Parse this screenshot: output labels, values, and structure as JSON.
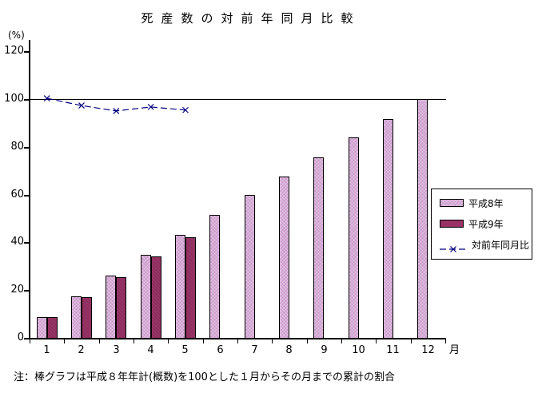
{
  "chart_data": {
    "type": "bar",
    "title": "死産数の対前年同月比較",
    "ylabel": "(%)",
    "xlabel": "月",
    "note": "注：棒グラフは平成８年年計(概数)を100とした１月からその月までの累計の割合",
    "categories": [
      "1",
      "2",
      "3",
      "4",
      "5",
      "6",
      "7",
      "8",
      "9",
      "10",
      "11",
      "12"
    ],
    "yticks": [
      0,
      20,
      40,
      60,
      80,
      100,
      120
    ],
    "ylim": [
      0,
      125
    ],
    "grid": false,
    "reference_line_y": 100,
    "legend_position": "right",
    "axis_color": "#000000",
    "series": [
      {
        "name": "平成8年",
        "type": "bar",
        "color": "#CC99CC",
        "values": [
          8.8,
          17.5,
          26.2,
          34.8,
          43.3,
          51.4,
          59.9,
          67.5,
          75.6,
          84.1,
          91.7,
          100.0
        ]
      },
      {
        "name": "平成9年",
        "type": "bar",
        "color": "#993366",
        "values": [
          8.8,
          17.0,
          25.4,
          34.0,
          42.3,
          null,
          null,
          null,
          null,
          null,
          null,
          null
        ]
      },
      {
        "name": "対前年同月比",
        "type": "line",
        "color": "#000080",
        "marker": "x",
        "dashed": true,
        "values": [
          100.3,
          97.3,
          95.0,
          96.7,
          95.4,
          null,
          null,
          null,
          null,
          null,
          null,
          null
        ]
      }
    ]
  }
}
